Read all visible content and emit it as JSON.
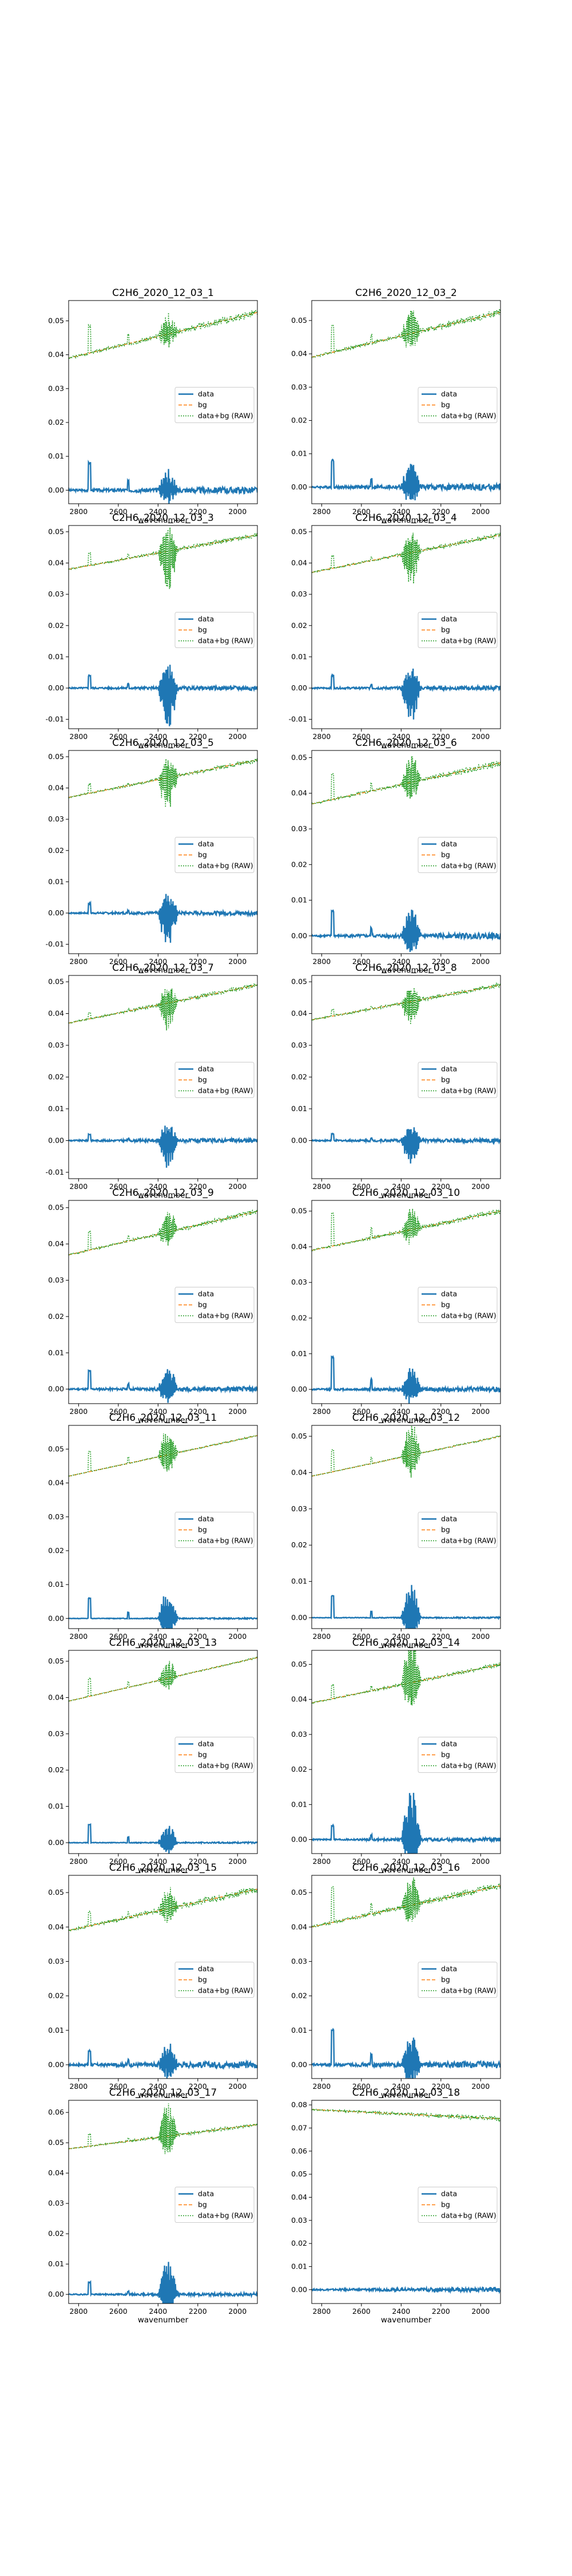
{
  "figure": {
    "colors": {
      "data": "#1f77b4",
      "bg": "#ff7f0e",
      "raw": "#2ca02c"
    }
  },
  "chart_data": [
    {
      "type": "line",
      "title": "C2H6_2020_12_03_1",
      "xlabel": "wavenumber",
      "ylabel": "",
      "xlim": [
        2850,
        1900
      ],
      "x_reversed": true,
      "ylim": [
        -0.004,
        0.056
      ],
      "yticks": [
        0.0,
        0.01,
        0.02,
        0.03,
        0.04,
        0.05
      ],
      "xticks": [
        2800,
        2600,
        2400,
        2200,
        2000
      ],
      "legend": [
        "data",
        "bg",
        "data+bg (RAW)"
      ],
      "legend_loc": "center right",
      "series": [
        {
          "name": "bg",
          "start": 0.039,
          "end": 0.0525
        },
        {
          "name": "data",
          "baseline": 0.0,
          "noise": 0.0015,
          "spike": 0.008,
          "band": 0.005
        },
        {
          "name": "data+bg (RAW)"
        }
      ]
    },
    {
      "type": "line",
      "title": "C2H6_2020_12_03_2",
      "xlabel": "wavenumber",
      "ylabel": "",
      "xlim": [
        2850,
        1900
      ],
      "x_reversed": true,
      "ylim": [
        -0.005,
        0.056
      ],
      "yticks": [
        0.0,
        0.01,
        0.02,
        0.03,
        0.04,
        0.05
      ],
      "xticks": [
        2800,
        2600,
        2400,
        2200,
        2000
      ],
      "legend": [
        "data",
        "bg",
        "data+bg (RAW)"
      ],
      "legend_loc": "center right",
      "series": [
        {
          "name": "bg",
          "start": 0.039,
          "end": 0.0525
        },
        {
          "name": "data",
          "baseline": 0.0,
          "noise": 0.0015,
          "spike": 0.008,
          "band": 0.006
        },
        {
          "name": "data+bg (RAW)"
        }
      ]
    },
    {
      "type": "line",
      "title": "C2H6_2020_12_03_3",
      "xlabel": "wavenumber",
      "ylabel": "",
      "xlim": [
        2850,
        1900
      ],
      "x_reversed": true,
      "ylim": [
        -0.013,
        0.052
      ],
      "yticks": [
        -0.01,
        0.0,
        0.01,
        0.02,
        0.03,
        0.04,
        0.05
      ],
      "xticks": [
        2800,
        2600,
        2400,
        2200,
        2000
      ],
      "legend": [
        "data",
        "bg",
        "data+bg (RAW)"
      ],
      "legend_loc": "center right",
      "series": [
        {
          "name": "bg",
          "start": 0.038,
          "end": 0.049
        },
        {
          "name": "data",
          "baseline": 0.0,
          "noise": 0.001,
          "spike": 0.004,
          "band": -0.01
        },
        {
          "name": "data+bg (RAW)"
        }
      ]
    },
    {
      "type": "line",
      "title": "C2H6_2020_12_03_4",
      "xlabel": "wavenumber",
      "ylabel": "",
      "xlim": [
        2850,
        1900
      ],
      "x_reversed": true,
      "ylim": [
        -0.013,
        0.052
      ],
      "yticks": [
        -0.01,
        0.0,
        0.01,
        0.02,
        0.03,
        0.04,
        0.05
      ],
      "xticks": [
        2800,
        2600,
        2400,
        2200,
        2000
      ],
      "legend": [
        "data",
        "bg",
        "data+bg (RAW)"
      ],
      "legend_loc": "center right",
      "series": [
        {
          "name": "bg",
          "start": 0.037,
          "end": 0.049
        },
        {
          "name": "data",
          "baseline": 0.0,
          "noise": 0.001,
          "spike": 0.004,
          "band": -0.009
        },
        {
          "name": "data+bg (RAW)"
        }
      ]
    },
    {
      "type": "line",
      "title": "C2H6_2020_12_03_5",
      "xlabel": "wavenumber",
      "ylabel": "",
      "xlim": [
        2850,
        1900
      ],
      "x_reversed": true,
      "ylim": [
        -0.013,
        0.052
      ],
      "yticks": [
        -0.01,
        0.0,
        0.01,
        0.02,
        0.03,
        0.04,
        0.05
      ],
      "xticks": [
        2800,
        2600,
        2400,
        2200,
        2000
      ],
      "legend": [
        "data",
        "bg",
        "data+bg (RAW)"
      ],
      "legend_loc": "center right",
      "series": [
        {
          "name": "bg",
          "start": 0.037,
          "end": 0.049
        },
        {
          "name": "data",
          "baseline": 0.0,
          "noise": 0.001,
          "spike": 0.003,
          "band": -0.009
        },
        {
          "name": "data+bg (RAW)"
        }
      ]
    },
    {
      "type": "line",
      "title": "C2H6_2020_12_03_6",
      "xlabel": "wavenumber",
      "ylabel": "",
      "xlim": [
        2850,
        1900
      ],
      "x_reversed": true,
      "ylim": [
        -0.005,
        0.052
      ],
      "yticks": [
        0.0,
        0.01,
        0.02,
        0.03,
        0.04,
        0.05
      ],
      "xticks": [
        2800,
        2600,
        2400,
        2200,
        2000
      ],
      "legend": [
        "data",
        "bg",
        "data+bg (RAW)"
      ],
      "legend_loc": "center right",
      "series": [
        {
          "name": "bg",
          "start": 0.037,
          "end": 0.0485
        },
        {
          "name": "data",
          "baseline": 0.0,
          "noise": 0.0012,
          "spike": 0.007,
          "band": 0.006
        },
        {
          "name": "data+bg (RAW)"
        }
      ]
    },
    {
      "type": "line",
      "title": "C2H6_2020_12_03_7",
      "xlabel": "wavenumber",
      "ylabel": "",
      "xlim": [
        2850,
        1900
      ],
      "x_reversed": true,
      "ylim": [
        -0.012,
        0.052
      ],
      "yticks": [
        -0.01,
        0.0,
        0.01,
        0.02,
        0.03,
        0.04,
        0.05
      ],
      "xticks": [
        2800,
        2600,
        2400,
        2200,
        2000
      ],
      "legend": [
        "data",
        "bg",
        "data+bg (RAW)"
      ],
      "legend_loc": "center right",
      "series": [
        {
          "name": "bg",
          "start": 0.037,
          "end": 0.049
        },
        {
          "name": "data",
          "baseline": 0.0,
          "noise": 0.001,
          "spike": 0.002,
          "band": -0.007
        },
        {
          "name": "data+bg (RAW)"
        }
      ]
    },
    {
      "type": "line",
      "title": "C2H6_2020_12_03_8",
      "xlabel": "wavenumber",
      "ylabel": "",
      "xlim": [
        2850,
        1900
      ],
      "x_reversed": true,
      "ylim": [
        -0.012,
        0.052
      ],
      "yticks": [
        0.0,
        0.01,
        0.02,
        0.03,
        0.04,
        0.05
      ],
      "xticks": [
        2800,
        2600,
        2400,
        2200,
        2000
      ],
      "legend": [
        "data",
        "bg",
        "data+bg (RAW)"
      ],
      "legend_loc": "center right",
      "series": [
        {
          "name": "bg",
          "start": 0.038,
          "end": 0.049
        },
        {
          "name": "data",
          "baseline": 0.0,
          "noise": 0.001,
          "spike": 0.002,
          "band": -0.006
        },
        {
          "name": "data+bg (RAW)"
        }
      ]
    },
    {
      "type": "line",
      "title": "C2H6_2020_12_03_9",
      "xlabel": "wavenumber",
      "ylabel": "",
      "xlim": [
        2850,
        1900
      ],
      "x_reversed": true,
      "ylim": [
        -0.004,
        0.052
      ],
      "yticks": [
        0.0,
        0.01,
        0.02,
        0.03,
        0.04,
        0.05
      ],
      "xticks": [
        2800,
        2600,
        2400,
        2200,
        2000
      ],
      "legend": [
        "data",
        "bg",
        "data+bg (RAW)"
      ],
      "legend_loc": "center right",
      "series": [
        {
          "name": "bg",
          "start": 0.037,
          "end": 0.049
        },
        {
          "name": "data",
          "baseline": 0.0,
          "noise": 0.001,
          "spike": 0.005,
          "band": 0.005
        },
        {
          "name": "data+bg (RAW)"
        }
      ]
    },
    {
      "type": "line",
      "title": "C2H6_2020_12_03_10",
      "xlabel": "wavenumber",
      "ylabel": "",
      "xlim": [
        2850,
        1900
      ],
      "x_reversed": true,
      "ylim": [
        -0.004,
        0.053
      ],
      "yticks": [
        0.0,
        0.01,
        0.02,
        0.03,
        0.04,
        0.05
      ],
      "xticks": [
        2800,
        2600,
        2400,
        2200,
        2000
      ],
      "legend": [
        "data",
        "bg",
        "data+bg (RAW)"
      ],
      "legend_loc": "center right",
      "series": [
        {
          "name": "bg",
          "start": 0.039,
          "end": 0.05
        },
        {
          "name": "data",
          "baseline": 0.0,
          "noise": 0.001,
          "spike": 0.009,
          "band": 0.005
        },
        {
          "name": "data+bg (RAW)"
        }
      ]
    },
    {
      "type": "line",
      "title": "C2H6_2020_12_03_11",
      "xlabel": "wavenumber",
      "ylabel": "",
      "xlim": [
        2850,
        1900
      ],
      "x_reversed": true,
      "ylim": [
        -0.003,
        0.057
      ],
      "yticks": [
        0.0,
        0.01,
        0.02,
        0.03,
        0.04,
        0.05
      ],
      "xticks": [
        2800,
        2600,
        2400,
        2200,
        2000
      ],
      "legend": [
        "data",
        "bg",
        "data+bg (RAW)"
      ],
      "legend_loc": "center right",
      "series": [
        {
          "name": "bg",
          "start": 0.042,
          "end": 0.054
        },
        {
          "name": "data",
          "baseline": 0.0,
          "noise": 0.0003,
          "spike": 0.006,
          "band": 0.007
        },
        {
          "name": "data+bg (RAW)"
        }
      ]
    },
    {
      "type": "line",
      "title": "C2H6_2020_12_03_12",
      "xlabel": "wavenumber",
      "ylabel": "",
      "xlim": [
        2850,
        1900
      ],
      "x_reversed": true,
      "ylim": [
        -0.003,
        0.053
      ],
      "yticks": [
        0.0,
        0.01,
        0.02,
        0.03,
        0.04,
        0.05
      ],
      "xticks": [
        2800,
        2600,
        2400,
        2200,
        2000
      ],
      "legend": [
        "data",
        "bg",
        "data+bg (RAW)"
      ],
      "legend_loc": "center right",
      "series": [
        {
          "name": "bg",
          "start": 0.039,
          "end": 0.05
        },
        {
          "name": "data",
          "baseline": 0.0,
          "noise": 0.0003,
          "spike": 0.006,
          "band": 0.008
        },
        {
          "name": "data+bg (RAW)"
        }
      ]
    },
    {
      "type": "line",
      "title": "C2H6_2020_12_03_13",
      "xlabel": "wavenumber",
      "ylabel": "",
      "xlim": [
        2850,
        1900
      ],
      "x_reversed": true,
      "ylim": [
        -0.003,
        0.053
      ],
      "yticks": [
        0.0,
        0.01,
        0.02,
        0.03,
        0.04,
        0.05
      ],
      "xticks": [
        2800,
        2600,
        2400,
        2200,
        2000
      ],
      "legend": [
        "data",
        "bg",
        "data+bg (RAW)"
      ],
      "legend_loc": "center right",
      "series": [
        {
          "name": "bg",
          "start": 0.039,
          "end": 0.051
        },
        {
          "name": "data",
          "baseline": 0.0,
          "noise": 0.0003,
          "spike": 0.005,
          "band": 0.004
        },
        {
          "name": "data+bg (RAW)"
        }
      ]
    },
    {
      "type": "line",
      "title": "C2H6_2020_12_03_14",
      "xlabel": "wavenumber",
      "ylabel": "",
      "xlim": [
        2850,
        1900
      ],
      "x_reversed": true,
      "ylim": [
        -0.004,
        0.054
      ],
      "yticks": [
        0.0,
        0.01,
        0.02,
        0.03,
        0.04,
        0.05
      ],
      "xticks": [
        2800,
        2600,
        2400,
        2200,
        2000
      ],
      "legend": [
        "data",
        "bg",
        "data+bg (RAW)"
      ],
      "legend_loc": "center right",
      "series": [
        {
          "name": "bg",
          "start": 0.039,
          "end": 0.05
        },
        {
          "name": "data",
          "baseline": 0.0,
          "noise": 0.0008,
          "spike": 0.004,
          "band": 0.011
        },
        {
          "name": "data+bg (RAW)"
        }
      ]
    },
    {
      "type": "line",
      "title": "C2H6_2020_12_03_15",
      "xlabel": "wavenumber",
      "ylabel": "",
      "xlim": [
        2850,
        1900
      ],
      "x_reversed": true,
      "ylim": [
        -0.004,
        0.055
      ],
      "yticks": [
        0.0,
        0.01,
        0.02,
        0.03,
        0.04,
        0.05
      ],
      "xticks": [
        2800,
        2600,
        2400,
        2200,
        2000
      ],
      "legend": [
        "data",
        "bg",
        "data+bg (RAW)"
      ],
      "legend_loc": "center right",
      "series": [
        {
          "name": "bg",
          "start": 0.039,
          "end": 0.051
        },
        {
          "name": "data",
          "baseline": 0.0,
          "noise": 0.0015,
          "spike": 0.004,
          "band": 0.005
        },
        {
          "name": "data+bg (RAW)"
        }
      ]
    },
    {
      "type": "line",
      "title": "C2H6_2020_12_03_16",
      "xlabel": "wavenumber",
      "ylabel": "",
      "xlim": [
        2850,
        1900
      ],
      "x_reversed": true,
      "ylim": [
        -0.004,
        0.055
      ],
      "yticks": [
        0.0,
        0.01,
        0.02,
        0.03,
        0.04,
        0.05
      ],
      "xticks": [
        2800,
        2600,
        2400,
        2200,
        2000
      ],
      "legend": [
        "data",
        "bg",
        "data+bg (RAW)"
      ],
      "legend_loc": "center right",
      "series": [
        {
          "name": "bg",
          "start": 0.04,
          "end": 0.052
        },
        {
          "name": "data",
          "baseline": 0.0,
          "noise": 0.0015,
          "spike": 0.01,
          "band": 0.007
        },
        {
          "name": "data+bg (RAW)"
        }
      ]
    },
    {
      "type": "line",
      "title": "C2H6_2020_12_03_17",
      "xlabel": "wavenumber",
      "ylabel": "",
      "xlim": [
        2850,
        1900
      ],
      "x_reversed": true,
      "ylim": [
        -0.003,
        0.064
      ],
      "yticks": [
        0.0,
        0.01,
        0.02,
        0.03,
        0.04,
        0.05,
        0.06
      ],
      "xticks": [
        2800,
        2600,
        2400,
        2200,
        2000
      ],
      "legend": [
        "data",
        "bg",
        "data+bg (RAW)"
      ],
      "legend_loc": "center right",
      "series": [
        {
          "name": "bg",
          "start": 0.048,
          "end": 0.056
        },
        {
          "name": "data",
          "baseline": 0.0,
          "noise": 0.0008,
          "spike": 0.004,
          "band": 0.009
        },
        {
          "name": "data+bg (RAW)"
        }
      ]
    },
    {
      "type": "line",
      "title": "C2H6_2020_12_03_18",
      "xlabel": "wavenumber",
      "ylabel": "",
      "xlim": [
        2850,
        1900
      ],
      "x_reversed": true,
      "ylim": [
        -0.006,
        0.082
      ],
      "yticks": [
        0.0,
        0.01,
        0.02,
        0.03,
        0.04,
        0.05,
        0.06,
        0.07,
        0.08
      ],
      "xticks": [
        2800,
        2600,
        2400,
        2200,
        2000
      ],
      "legend": [
        "data",
        "bg",
        "data+bg (RAW)"
      ],
      "legend_loc": "center right",
      "series": [
        {
          "name": "bg",
          "start": 0.078,
          "end": 0.074
        },
        {
          "name": "data",
          "baseline": 0.0,
          "noise": 0.0015,
          "spike": 0.0,
          "band": 0.0
        },
        {
          "name": "data+bg (RAW)"
        }
      ]
    }
  ]
}
